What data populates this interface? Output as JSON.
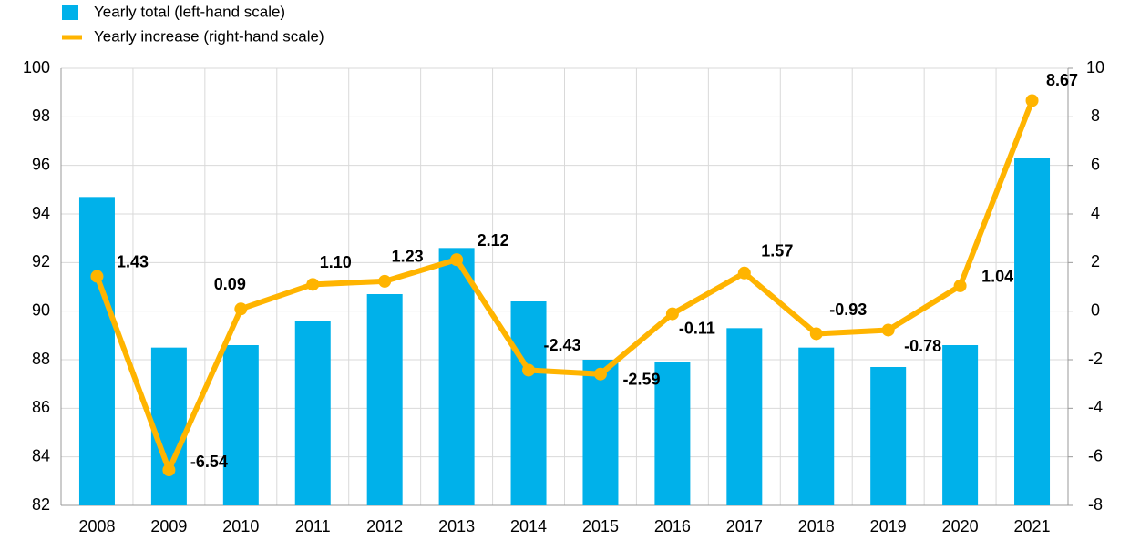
{
  "chart_data": {
    "type": "bar-line",
    "categories": [
      "2008",
      "2009",
      "2010",
      "2011",
      "2012",
      "2013",
      "2014",
      "2015",
      "2016",
      "2017",
      "2018",
      "2019",
      "2020",
      "2021"
    ],
    "series": [
      {
        "name": "Yearly total (left-hand scale)",
        "color": "#00b1ea",
        "type": "bar",
        "values": [
          94.7,
          88.5,
          88.6,
          89.6,
          90.7,
          92.6,
          90.4,
          88.0,
          87.9,
          89.3,
          88.5,
          87.7,
          88.6,
          96.3
        ]
      },
      {
        "name": "Yearly increase (right-hand scale)",
        "color": "#ffb400",
        "type": "line",
        "axis": "y2",
        "values": [
          1.43,
          -6.54,
          0.09,
          1.1,
          1.23,
          2.12,
          -2.43,
          -2.59,
          -0.11,
          1.57,
          -0.93,
          -0.78,
          1.04,
          8.67
        ],
        "value_labels": [
          "1.43",
          "-6.54",
          "0.09",
          "1.10",
          "1.23",
          "2.12",
          "-2.43",
          "-2.59",
          "-0.11",
          "1.57",
          "-0.93",
          "-0.78",
          "1.04",
          "8.67"
        ]
      }
    ],
    "ylim": [
      82,
      100
    ],
    "yticks": [
      82,
      84,
      86,
      88,
      90,
      92,
      94,
      96,
      98,
      100
    ],
    "y2lim": [
      -8,
      10
    ],
    "y2ticks": [
      -8,
      -6,
      -4,
      -2,
      0,
      2,
      4,
      6,
      8,
      10
    ],
    "grid": true,
    "legend": "top-left"
  }
}
